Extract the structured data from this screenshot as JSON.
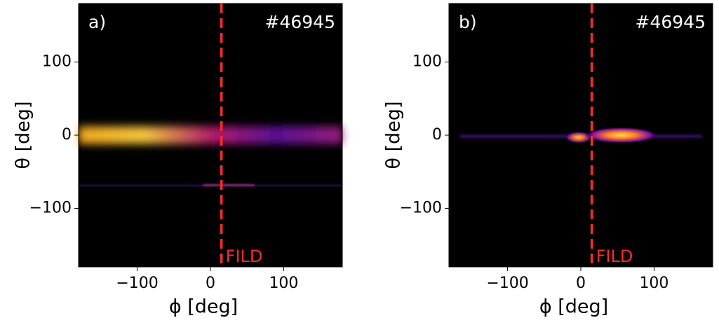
{
  "chart_data": [
    {
      "type": "heatmap",
      "panel_label": "a)",
      "shot": "#46945",
      "xlabel": "ϕ [deg]",
      "ylabel": "θ [deg]",
      "xlim": [
        -180,
        180
      ],
      "ylim": [
        -180,
        180
      ],
      "xticks": [
        {
          "value": -100,
          "label": "−100"
        },
        0,
        100
      ],
      "yticks": [
        {
          "value": -100,
          "label": "−100"
        },
        0,
        100
      ],
      "marker": {
        "label": "FILD",
        "x": 15,
        "color": "#ff2a2a"
      }
    },
    {
      "type": "heatmap",
      "panel_label": "b)",
      "shot": "#46945",
      "xlabel": "ϕ [deg]",
      "ylabel": "θ [deg]",
      "xlim": [
        -180,
        180
      ],
      "ylim": [
        -180,
        180
      ],
      "xticks": [
        {
          "value": -100,
          "label": "−100"
        },
        0,
        100
      ],
      "yticks": [
        {
          "value": -100,
          "label": "−100"
        },
        0,
        100
      ],
      "marker": {
        "label": "FILD",
        "x": 15,
        "color": "#ff2a2a"
      }
    }
  ]
}
